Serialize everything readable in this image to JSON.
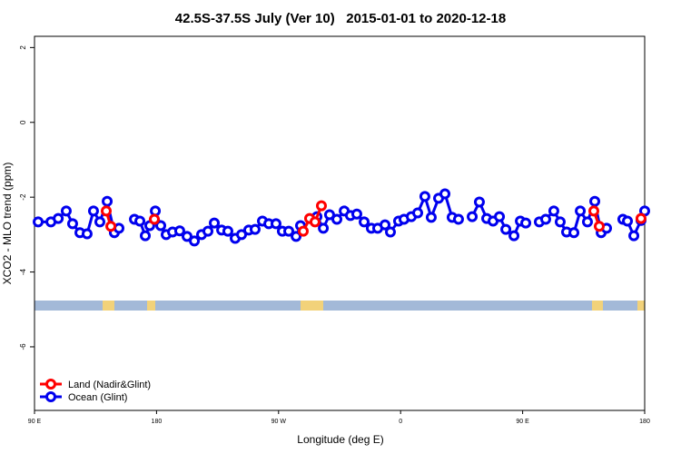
{
  "chart_data": {
    "type": "line",
    "title": "42.5S-37.5S July (Ver 10)   2015-01-01 to 2020-12-18",
    "x_label": "Longitude (deg E)",
    "y_label": "XCO2 - MLO trend (ppm)",
    "xlim": [
      90,
      540
    ],
    "xticks": [
      {
        "value": 90,
        "label": "90 E"
      },
      180,
      {
        "value": 270,
        "label": "90 W"
      },
      {
        "value": 360,
        "label": "0"
      },
      {
        "value": 450,
        "label": "90 E"
      },
      {
        "value": 540,
        "label": "180"
      }
    ],
    "ylim": [
      -7.7,
      2.3
    ],
    "yticks": [
      -6,
      -4,
      -2,
      0,
      2
    ],
    "grid": false,
    "legend": "bottom-left",
    "series": [
      {
        "name": "Land (Nadir&Glint)",
        "color": "#ff0000",
        "x": [
          142.9,
          146.3,
          150,
          178.4,
          250,
          288.2,
          292.9,
          296.9,
          301.6,
          400,
          502.5,
          506.5,
          520,
          537.3
        ],
        "values": [
          -2.37,
          -2.78,
          null,
          -2.59,
          null,
          -2.91,
          -2.57,
          -2.66,
          -2.23,
          null,
          -2.37,
          -2.78,
          null,
          -2.57
        ]
      },
      {
        "name": "Ocean (Glint)",
        "color": "#0000ee",
        "x": [
          92.7,
          102.1,
          107.5,
          113.4,
          118.1,
          123.5,
          128.8,
          133.5,
          138.2,
          143.6,
          148.9,
          152.3,
          156,
          163.7,
          167.7,
          171.7,
          175.0,
          179.1,
          183.1,
          187.1,
          191.8,
          197.1,
          202.5,
          207.9,
          213.2,
          217.9,
          222.6,
          228.0,
          232.6,
          238.0,
          242.7,
          248.0,
          252.7,
          258.1,
          262.8,
          268.1,
          272.8,
          277.5,
          282.9,
          286.2,
          292,
          298.3,
          303.0,
          307.6,
          313.0,
          318.4,
          323.0,
          327.7,
          333.1,
          338.4,
          343.1,
          348.5,
          352.5,
          358.5,
          362.5,
          367.9,
          372.6,
          377.9,
          382.6,
          388.0,
          392.7,
          398.0,
          402.7,
          408,
          412.8,
          418.1,
          423.5,
          428.2,
          432.9,
          437.6,
          443.6,
          448.3,
          452.3,
          457,
          462.3,
          467.0,
          473.0,
          477.7,
          482.4,
          487.8,
          492.5,
          497.8,
          503.2,
          507.9,
          511.9,
          518,
          523.9,
          527.3,
          532.0,
          537.3,
          540.0
        ],
        "values": [
          -2.66,
          -2.66,
          -2.57,
          -2.37,
          -2.71,
          -2.95,
          -2.98,
          -2.37,
          -2.66,
          -2.11,
          -2.95,
          -2.83,
          null,
          -2.59,
          -2.64,
          -3.03,
          -2.76,
          -2.37,
          -2.76,
          -3.0,
          -2.93,
          -2.9,
          -3.05,
          -3.17,
          -3.0,
          -2.91,
          -2.69,
          -2.88,
          -2.91,
          -3.1,
          -3.0,
          -2.88,
          -2.86,
          -2.64,
          -2.71,
          -2.71,
          -2.91,
          -2.91,
          -3.05,
          -2.76,
          null,
          -2.52,
          -2.83,
          -2.47,
          -2.59,
          -2.37,
          -2.49,
          -2.45,
          -2.66,
          -2.83,
          -2.83,
          -2.74,
          -2.93,
          -2.64,
          -2.59,
          -2.52,
          -2.42,
          -1.98,
          -2.54,
          -2.03,
          -1.91,
          -2.54,
          -2.59,
          null,
          -2.52,
          -2.13,
          -2.57,
          -2.64,
          -2.52,
          -2.86,
          -3.03,
          -2.64,
          -2.69,
          null,
          -2.66,
          -2.59,
          -2.37,
          -2.66,
          -2.93,
          -2.95,
          -2.37,
          -2.66,
          -2.11,
          -2.95,
          -2.83,
          null,
          -2.59,
          -2.64,
          -3.03,
          -2.62,
          -2.37
        ]
      }
    ]
  }
}
